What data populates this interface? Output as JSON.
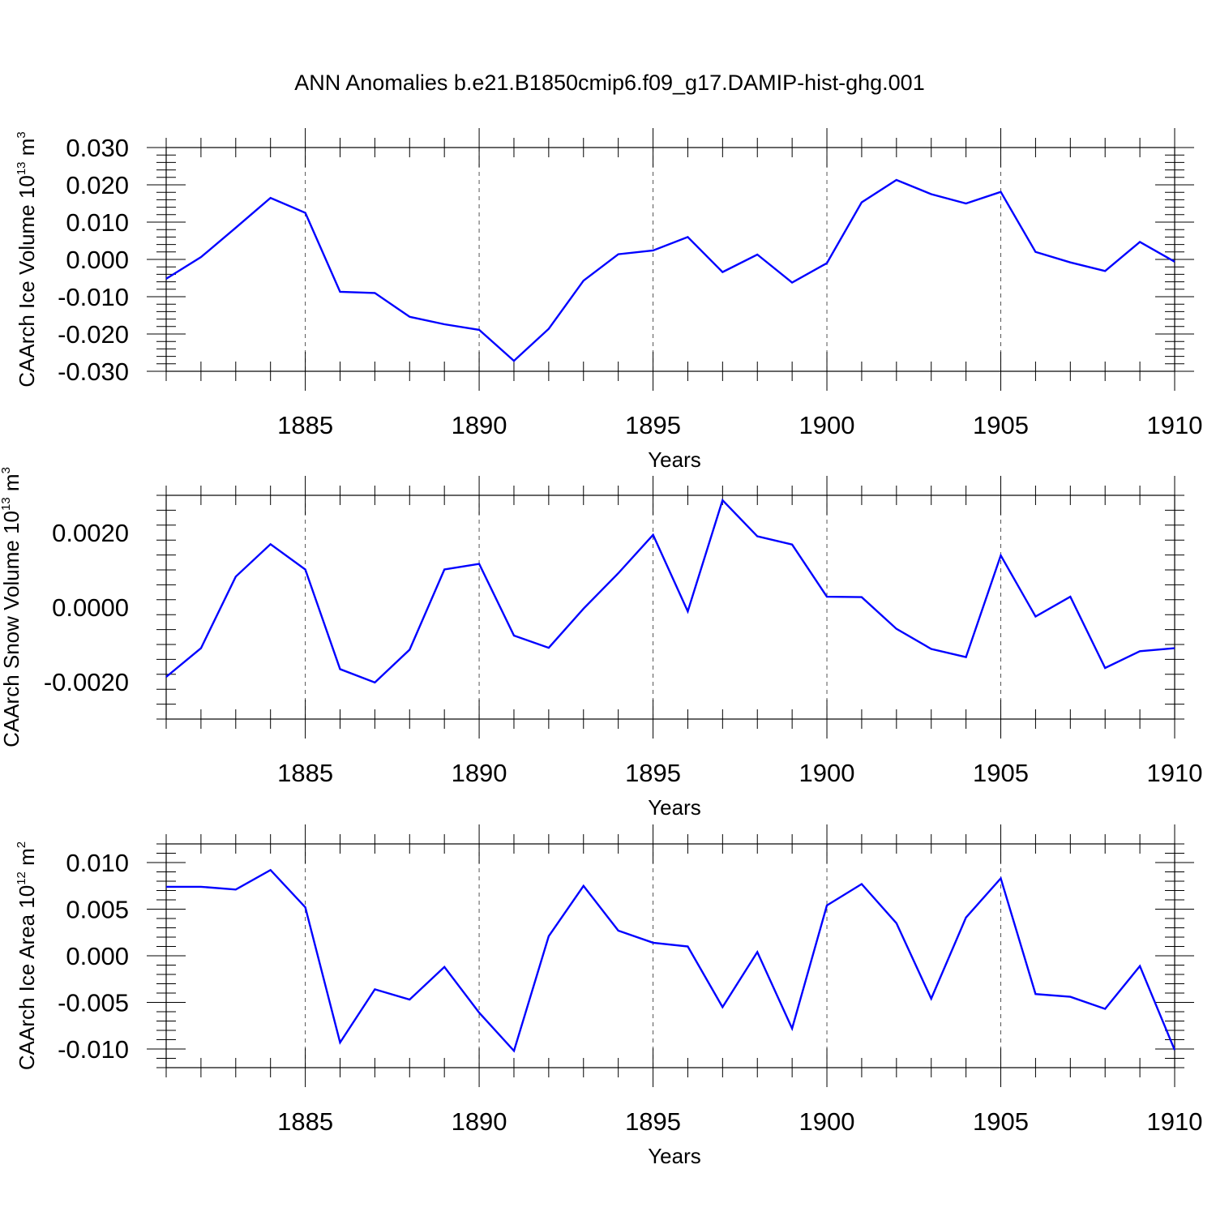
{
  "title": "ANN Anomalies b.e21.B1850cmip6.f09_g17.DAMIP-hist-ghg.001",
  "chart_data": [
    {
      "type": "line",
      "ylabel": "CAArch Ice Volume",
      "ylabel_unit": {
        "base": "10",
        "exp": "13",
        "unit": "m",
        "unit_exp": "3"
      },
      "xlabel": "Years",
      "xlim": [
        1881,
        1910
      ],
      "ylim": [
        -0.03,
        0.03
      ],
      "x_ticks": [
        1885,
        1890,
        1895,
        1900,
        1905,
        1910
      ],
      "y_ticks": [
        -0.03,
        -0.02,
        -0.01,
        0.0,
        0.01,
        0.02,
        0.03
      ],
      "y_tick_labels": [
        "-0.030",
        "-0.020",
        "-0.010",
        "0.000",
        "0.010",
        "0.020",
        "0.030"
      ],
      "line_color": "#0000ff",
      "grid": "vertical dashed at major x ticks",
      "x": [
        1881,
        1882,
        1883,
        1884,
        1885,
        1886,
        1887,
        1888,
        1889,
        1890,
        1891,
        1892,
        1893,
        1894,
        1895,
        1896,
        1897,
        1898,
        1899,
        1900,
        1901,
        1902,
        1903,
        1904,
        1905,
        1906,
        1907,
        1908,
        1909,
        1910
      ],
      "values": [
        -0.0052,
        0.0006,
        0.0085,
        0.0165,
        0.0125,
        -0.0087,
        -0.009,
        -0.0154,
        -0.0174,
        -0.0189,
        -0.0272,
        -0.0186,
        -0.0057,
        0.0014,
        0.0024,
        0.006,
        -0.0034,
        0.0013,
        -0.0062,
        -0.001,
        0.0153,
        0.0213,
        0.0175,
        0.015,
        0.0181,
        0.002,
        -0.0008,
        -0.0031,
        0.0047,
        -0.0006
      ]
    },
    {
      "type": "line",
      "ylabel": "CAArch Snow Volume",
      "ylabel_unit": {
        "base": "10",
        "exp": "13",
        "unit": "m",
        "unit_exp": "3"
      },
      "xlabel": "Years",
      "xlim": [
        1881,
        1910
      ],
      "ylim": [
        -0.003,
        0.003
      ],
      "x_ticks": [
        1885,
        1890,
        1895,
        1900,
        1905,
        1910
      ],
      "y_ticks": [
        -0.002,
        0.0,
        0.002
      ],
      "y_tick_labels": [
        "-0.0020",
        "0.0000",
        "0.0020"
      ],
      "line_color": "#0000ff",
      "grid": "vertical dashed at major x ticks",
      "x": [
        1881,
        1882,
        1883,
        1884,
        1885,
        1886,
        1887,
        1888,
        1889,
        1890,
        1891,
        1892,
        1893,
        1894,
        1895,
        1896,
        1897,
        1898,
        1899,
        1900,
        1901,
        1902,
        1903,
        1904,
        1905,
        1906,
        1907,
        1908,
        1909,
        1910
      ],
      "values": [
        -0.00187,
        -0.0011,
        0.00082,
        0.00169,
        0.00101,
        -0.00166,
        -0.00202,
        -0.00114,
        0.00101,
        0.00116,
        -0.00076,
        -0.00109,
        -4e-05,
        0.00091,
        0.00194,
        -0.00011,
        0.00287,
        0.0019,
        0.00168,
        0.00028,
        0.00027,
        -0.00058,
        -0.00112,
        -0.00134,
        0.00139,
        -0.00025,
        0.00028,
        -0.00163,
        -0.00118,
        -0.0011
      ]
    },
    {
      "type": "line",
      "ylabel": "CAArch Ice Area",
      "ylabel_unit": {
        "base": "10",
        "exp": "12",
        "unit": "m",
        "unit_exp": "2"
      },
      "xlabel": "Years",
      "xlim": [
        1881,
        1910
      ],
      "ylim": [
        -0.012,
        0.012
      ],
      "x_ticks": [
        1885,
        1890,
        1895,
        1900,
        1905,
        1910
      ],
      "y_ticks": [
        -0.01,
        -0.005,
        0.0,
        0.005,
        0.01
      ],
      "y_tick_labels": [
        "-0.010",
        "-0.005",
        "0.000",
        "0.005",
        "0.010"
      ],
      "line_color": "#0000ff",
      "grid": "vertical dashed at major x ticks",
      "x": [
        1881,
        1882,
        1883,
        1884,
        1885,
        1886,
        1887,
        1888,
        1889,
        1890,
        1891,
        1892,
        1893,
        1894,
        1895,
        1896,
        1897,
        1898,
        1899,
        1900,
        1901,
        1902,
        1903,
        1904,
        1905,
        1906,
        1907,
        1908,
        1909,
        1910
      ],
      "values": [
        0.0074,
        0.0074,
        0.0071,
        0.0092,
        0.0052,
        -0.0093,
        -0.0036,
        -0.0047,
        -0.0012,
        -0.0061,
        -0.0102,
        0.0021,
        0.0075,
        0.0027,
        0.0014,
        0.001,
        -0.0055,
        0.0004,
        -0.0078,
        0.0054,
        0.0077,
        0.0035,
        -0.0046,
        0.0041,
        0.0083,
        -0.0041,
        -0.0044,
        -0.0057,
        -0.0011,
        -0.0101
      ]
    }
  ]
}
